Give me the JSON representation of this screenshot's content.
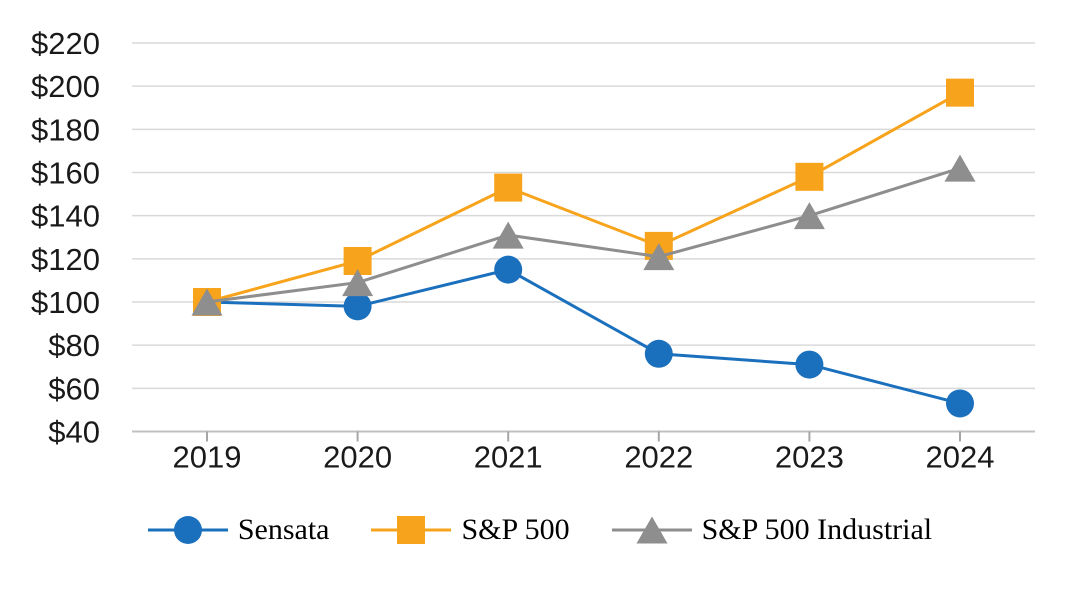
{
  "chart_data": {
    "type": "line",
    "title": "",
    "categories": [
      "2019",
      "2020",
      "2021",
      "2022",
      "2023",
      "2024"
    ],
    "series": [
      {
        "name": "Sensata",
        "marker": "circle",
        "color": "#1B70BD",
        "values": [
          100,
          98,
          115,
          76,
          71,
          53
        ]
      },
      {
        "name": "S&P 500",
        "marker": "square",
        "color": "#F7A31C",
        "values": [
          100,
          119,
          153,
          126,
          158,
          197
        ]
      },
      {
        "name": "S&P 500 Industrial",
        "marker": "triangle",
        "color": "#8E8E8E",
        "values": [
          100,
          109,
          131,
          121,
          140,
          162
        ]
      }
    ],
    "xlabel": "",
    "ylabel": "",
    "ylim": [
      40,
      220
    ],
    "ytick_step": 20,
    "ytick_labels": [
      "$40",
      "$60",
      "$80",
      "$100",
      "$120",
      "$140",
      "$160",
      "$180",
      "$200",
      "$220"
    ],
    "grid": true,
    "legend_position": "bottom",
    "styles": {
      "gridline_color": "#D9D9D9",
      "axis_color": "#C0C0C0",
      "tick_color": "#A6A6A6",
      "label_color": "#1A1A1A"
    }
  }
}
